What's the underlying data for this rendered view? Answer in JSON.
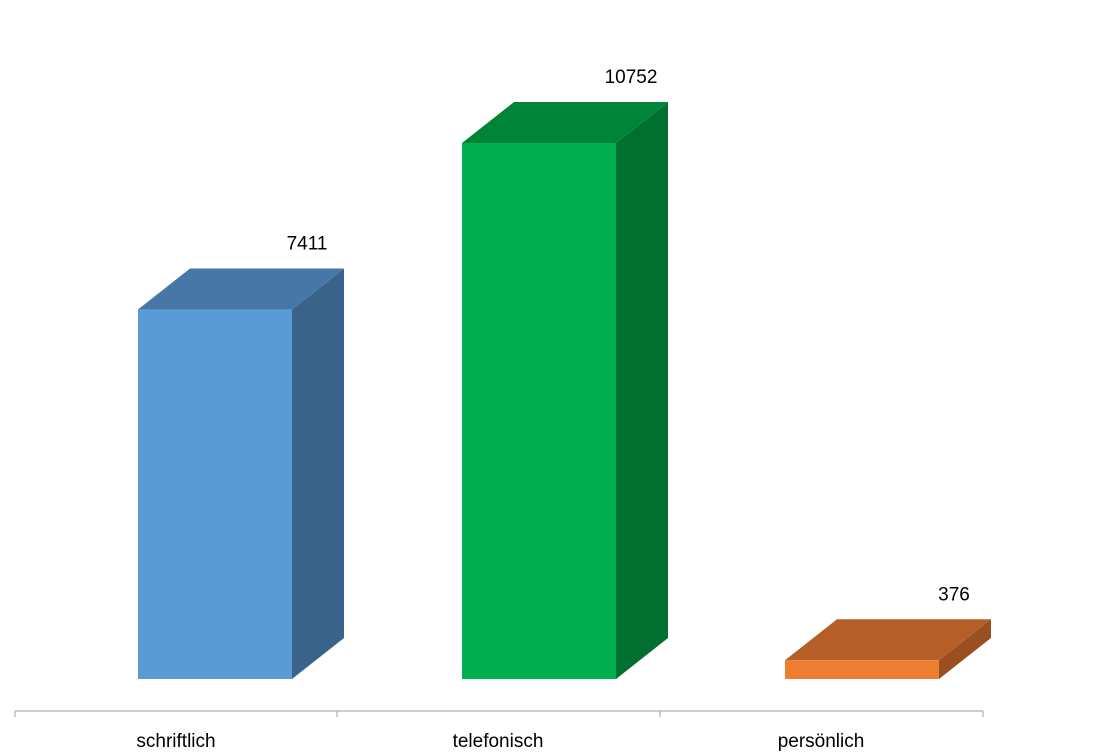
{
  "chart_data": {
    "type": "bar",
    "categories": [
      "schriftlich",
      "telefonisch",
      "persönlich"
    ],
    "values": [
      7411,
      10752,
      376
    ],
    "title": "",
    "xlabel": "",
    "ylabel": "",
    "ylim": [
      0,
      10752
    ],
    "grid": false,
    "legend": "none",
    "data_labels": [
      "7411",
      "10752",
      "376"
    ],
    "colors": [
      {
        "front": "#5b9bd5",
        "top": "#4777a6",
        "side": "#3a6389"
      },
      {
        "front": "#00b050",
        "top": "#008538",
        "side": "#006f2f"
      },
      {
        "front": "#ed7d31",
        "top": "#b65e27",
        "side": "#9a4f20"
      }
    ],
    "axis_color": "#b0b0b0"
  }
}
